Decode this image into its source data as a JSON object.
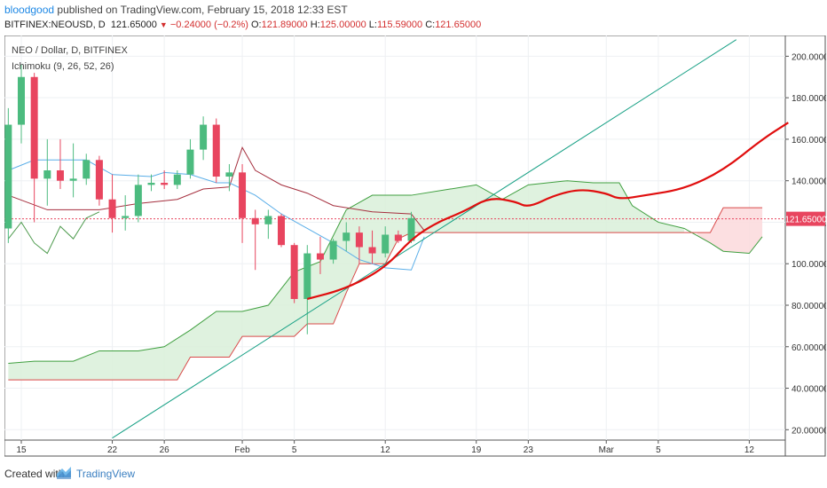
{
  "header": {
    "user": "bloodgood",
    "published": "published on TradingView.com, February 15, 2018 12:33 EST",
    "symbol": "BITFINEX:NEOUSD, D",
    "last": "121.65000",
    "change": "−0.24000 (−0.2%)",
    "o_label": "O:",
    "o": "121.89000",
    "h_label": "H:",
    "h": "125.00000",
    "l_label": "L:",
    "l": "115.59000",
    "c_label": "C:",
    "c": "121.65000"
  },
  "footer": {
    "created_with": "Created with",
    "brand": "TradingView"
  },
  "colors": {
    "up": "#4cbb7f",
    "down": "#e8455f",
    "last_price": "#e8455f",
    "cloud_green": "#d9f0d9",
    "cloud_red": "#fbd9dc",
    "span_a": "#3f9f3f",
    "span_b": "#d94a4a",
    "tenkan": "#5aaee8",
    "kijun": "#a52f3e",
    "chikou": "#4e9b4e",
    "trendline": "#17a085",
    "forecast": "#e00e0e"
  },
  "chart_data": {
    "type": "candlestick",
    "title": "NEO / Dollar, D, BITFINEX",
    "indicator": "Ichimoku (9, 26, 52, 26)",
    "y_axis": {
      "ylim": [
        15,
        210
      ],
      "ticks": [
        20,
        40,
        60,
        80,
        100,
        120,
        140,
        160,
        180,
        200
      ],
      "tick_labels": [
        "20.00000",
        "40.00000",
        "60.00000",
        "80.00000",
        "100.00000",
        "120.00000",
        "140.00000",
        "160.00000",
        "180.00000",
        "200.00000"
      ],
      "position": "right"
    },
    "x_axis": {
      "start": "2018-01-15",
      "ticks": [
        {
          "date": "2018-01-15",
          "label": "15"
        },
        {
          "date": "2018-01-22",
          "label": "22"
        },
        {
          "date": "2018-01-26",
          "label": "26"
        },
        {
          "date": "2018-02-01",
          "label": "Feb"
        },
        {
          "date": "2018-02-05",
          "label": "5"
        },
        {
          "date": "2018-02-12",
          "label": "12"
        },
        {
          "date": "2018-02-19",
          "label": "19"
        },
        {
          "date": "2018-02-23",
          "label": "23"
        },
        {
          "date": "2018-03-01",
          "label": "Mar"
        },
        {
          "date": "2018-03-05",
          "label": "5"
        },
        {
          "date": "2018-03-12",
          "label": "12"
        }
      ]
    },
    "last_price": {
      "value": 121.65,
      "label": "121.65000"
    },
    "candles": [
      {
        "date": "2018-01-14",
        "o": 117,
        "h": 175,
        "l": 110,
        "c": 167
      },
      {
        "date": "2018-01-15",
        "o": 167,
        "h": 196,
        "l": 158,
        "c": 190
      },
      {
        "date": "2018-01-16",
        "o": 190,
        "h": 192,
        "l": 120,
        "c": 141
      },
      {
        "date": "2018-01-17",
        "o": 141,
        "h": 160,
        "l": 128,
        "c": 145
      },
      {
        "date": "2018-01-18",
        "o": 145,
        "h": 160,
        "l": 136,
        "c": 140
      },
      {
        "date": "2018-01-19",
        "o": 140,
        "h": 158,
        "l": 132,
        "c": 141
      },
      {
        "date": "2018-01-20",
        "o": 141,
        "h": 153,
        "l": 138,
        "c": 150
      },
      {
        "date": "2018-01-21",
        "o": 150,
        "h": 152,
        "l": 128,
        "c": 131
      },
      {
        "date": "2018-01-22",
        "o": 131,
        "h": 143,
        "l": 115,
        "c": 122
      },
      {
        "date": "2018-01-23",
        "o": 122,
        "h": 133,
        "l": 116,
        "c": 123
      },
      {
        "date": "2018-01-24",
        "o": 123,
        "h": 143,
        "l": 120,
        "c": 138
      },
      {
        "date": "2018-01-25",
        "o": 138,
        "h": 143,
        "l": 135,
        "c": 139
      },
      {
        "date": "2018-01-26",
        "o": 139,
        "h": 145,
        "l": 136,
        "c": 138
      },
      {
        "date": "2018-01-27",
        "o": 138,
        "h": 145,
        "l": 136,
        "c": 143
      },
      {
        "date": "2018-01-28",
        "o": 143,
        "h": 160,
        "l": 141,
        "c": 155
      },
      {
        "date": "2018-01-29",
        "o": 155,
        "h": 171,
        "l": 150,
        "c": 167
      },
      {
        "date": "2018-01-30",
        "o": 167,
        "h": 170,
        "l": 139,
        "c": 142
      },
      {
        "date": "2018-01-31",
        "o": 142,
        "h": 148,
        "l": 135,
        "c": 144
      },
      {
        "date": "2018-02-01",
        "o": 144,
        "h": 148,
        "l": 110,
        "c": 122
      },
      {
        "date": "2018-02-02",
        "o": 122,
        "h": 126,
        "l": 97,
        "c": 119
      },
      {
        "date": "2018-02-03",
        "o": 119,
        "h": 126,
        "l": 112,
        "c": 123
      },
      {
        "date": "2018-02-04",
        "o": 123,
        "h": 124,
        "l": 108,
        "c": 109
      },
      {
        "date": "2018-02-05",
        "o": 109,
        "h": 110,
        "l": 81,
        "c": 83
      },
      {
        "date": "2018-02-06",
        "o": 83,
        "h": 109,
        "l": 66,
        "c": 105
      },
      {
        "date": "2018-02-07",
        "o": 105,
        "h": 113,
        "l": 95,
        "c": 102
      },
      {
        "date": "2018-02-08",
        "o": 102,
        "h": 112,
        "l": 100,
        "c": 111
      },
      {
        "date": "2018-02-09",
        "o": 111,
        "h": 120,
        "l": 106,
        "c": 115
      },
      {
        "date": "2018-02-10",
        "o": 115,
        "h": 118,
        "l": 100,
        "c": 108
      },
      {
        "date": "2018-02-11",
        "o": 108,
        "h": 116,
        "l": 100,
        "c": 105
      },
      {
        "date": "2018-02-12",
        "o": 105,
        "h": 118,
        "l": 103,
        "c": 114
      },
      {
        "date": "2018-02-13",
        "o": 114,
        "h": 116,
        "l": 110,
        "c": 111
      },
      {
        "date": "2018-02-14",
        "o": 111,
        "h": 125,
        "l": 110,
        "c": 122
      }
    ],
    "trendline": {
      "points": [
        {
          "date": "2018-01-22",
          "value": 16
        },
        {
          "date": "2018-03-11",
          "value": 208
        }
      ]
    },
    "forecast_path": {
      "points": [
        {
          "date": "2018-02-06",
          "value": 83
        },
        {
          "date": "2018-02-09",
          "value": 88
        },
        {
          "date": "2018-02-12",
          "value": 98
        },
        {
          "date": "2018-02-14",
          "value": 112
        },
        {
          "date": "2018-02-16",
          "value": 120
        },
        {
          "date": "2018-02-18",
          "value": 125
        },
        {
          "date": "2018-02-20",
          "value": 132
        },
        {
          "date": "2018-02-22",
          "value": 130
        },
        {
          "date": "2018-02-23",
          "value": 127
        },
        {
          "date": "2018-02-25",
          "value": 133
        },
        {
          "date": "2018-02-27",
          "value": 136
        },
        {
          "date": "2018-03-01",
          "value": 134
        },
        {
          "date": "2018-03-02",
          "value": 131
        },
        {
          "date": "2018-03-04",
          "value": 133
        },
        {
          "date": "2018-03-07",
          "value": 136
        },
        {
          "date": "2018-03-10",
          "value": 145
        },
        {
          "date": "2018-03-13",
          "value": 160
        },
        {
          "date": "2018-03-15",
          "value": 168
        }
      ]
    },
    "ichimoku": {
      "tenkan": [
        {
          "date": "2018-01-14",
          "value": 145
        },
        {
          "date": "2018-01-16",
          "value": 150
        },
        {
          "date": "2018-01-20",
          "value": 150
        },
        {
          "date": "2018-01-22",
          "value": 143
        },
        {
          "date": "2018-01-25",
          "value": 142
        },
        {
          "date": "2018-01-26",
          "value": 144
        },
        {
          "date": "2018-01-28",
          "value": 143
        },
        {
          "date": "2018-01-30",
          "value": 139
        },
        {
          "date": "2018-01-31",
          "value": 139
        },
        {
          "date": "2018-02-02",
          "value": 133
        },
        {
          "date": "2018-02-04",
          "value": 124
        },
        {
          "date": "2018-02-06",
          "value": 117
        },
        {
          "date": "2018-02-08",
          "value": 110
        },
        {
          "date": "2018-02-10",
          "value": 102
        },
        {
          "date": "2018-02-12",
          "value": 98
        },
        {
          "date": "2018-02-14",
          "value": 97
        },
        {
          "date": "2018-02-15",
          "value": 113
        }
      ],
      "kijun": [
        {
          "date": "2018-01-14",
          "value": 133
        },
        {
          "date": "2018-01-17",
          "value": 126
        },
        {
          "date": "2018-01-21",
          "value": 126
        },
        {
          "date": "2018-01-24",
          "value": 129
        },
        {
          "date": "2018-01-27",
          "value": 131
        },
        {
          "date": "2018-01-29",
          "value": 136
        },
        {
          "date": "2018-01-31",
          "value": 137
        },
        {
          "date": "2018-02-01",
          "value": 156
        },
        {
          "date": "2018-02-02",
          "value": 145
        },
        {
          "date": "2018-02-04",
          "value": 138
        },
        {
          "date": "2018-02-06",
          "value": 134
        },
        {
          "date": "2018-02-08",
          "value": 128
        },
        {
          "date": "2018-02-11",
          "value": 125
        },
        {
          "date": "2018-02-14",
          "value": 124
        },
        {
          "date": "2018-02-15",
          "value": 116
        }
      ],
      "chikou": [
        {
          "date": "2018-01-14",
          "value": 112
        },
        {
          "date": "2018-01-15",
          "value": 120
        },
        {
          "date": "2018-01-16",
          "value": 110
        },
        {
          "date": "2018-01-17",
          "value": 105
        },
        {
          "date": "2018-01-18",
          "value": 118
        },
        {
          "date": "2018-01-19",
          "value": 112
        },
        {
          "date": "2018-01-20",
          "value": 122
        },
        {
          "date": "2018-01-21",
          "value": 125
        }
      ],
      "span_a": [
        {
          "date": "2018-01-14",
          "value": 52
        },
        {
          "date": "2018-01-16",
          "value": 53
        },
        {
          "date": "2018-01-19",
          "value": 53
        },
        {
          "date": "2018-01-21",
          "value": 58
        },
        {
          "date": "2018-01-24",
          "value": 58
        },
        {
          "date": "2018-01-26",
          "value": 60
        },
        {
          "date": "2018-01-28",
          "value": 68
        },
        {
          "date": "2018-01-30",
          "value": 77
        },
        {
          "date": "2018-02-01",
          "value": 77
        },
        {
          "date": "2018-02-03",
          "value": 80
        },
        {
          "date": "2018-02-05",
          "value": 96
        },
        {
          "date": "2018-02-07",
          "value": 101
        },
        {
          "date": "2018-02-09",
          "value": 126
        },
        {
          "date": "2018-02-11",
          "value": 133
        },
        {
          "date": "2018-02-14",
          "value": 133
        },
        {
          "date": "2018-02-17",
          "value": 136
        },
        {
          "date": "2018-02-19",
          "value": 138
        },
        {
          "date": "2018-02-21",
          "value": 131
        },
        {
          "date": "2018-02-23",
          "value": 138
        },
        {
          "date": "2018-02-26",
          "value": 140
        },
        {
          "date": "2018-02-28",
          "value": 139
        },
        {
          "date": "2018-03-02",
          "value": 139
        },
        {
          "date": "2018-03-03",
          "value": 128
        },
        {
          "date": "2018-03-05",
          "value": 120
        },
        {
          "date": "2018-03-07",
          "value": 117
        },
        {
          "date": "2018-03-09",
          "value": 110
        },
        {
          "date": "2018-03-10",
          "value": 106
        },
        {
          "date": "2018-03-12",
          "value": 105
        },
        {
          "date": "2018-03-13",
          "value": 113
        }
      ],
      "span_b": [
        {
          "date": "2018-01-14",
          "value": 44
        },
        {
          "date": "2018-01-27",
          "value": 44
        },
        {
          "date": "2018-01-28",
          "value": 55
        },
        {
          "date": "2018-01-31",
          "value": 55
        },
        {
          "date": "2018-02-01",
          "value": 65
        },
        {
          "date": "2018-02-05",
          "value": 65
        },
        {
          "date": "2018-02-06",
          "value": 71
        },
        {
          "date": "2018-02-08",
          "value": 71
        },
        {
          "date": "2018-02-09",
          "value": 86
        },
        {
          "date": "2018-02-10",
          "value": 100
        },
        {
          "date": "2018-02-12",
          "value": 100
        },
        {
          "date": "2018-02-13",
          "value": 112
        },
        {
          "date": "2018-02-14",
          "value": 115
        },
        {
          "date": "2018-03-09",
          "value": 115
        },
        {
          "date": "2018-03-10",
          "value": 127
        },
        {
          "date": "2018-03-13",
          "value": 127
        }
      ]
    }
  }
}
